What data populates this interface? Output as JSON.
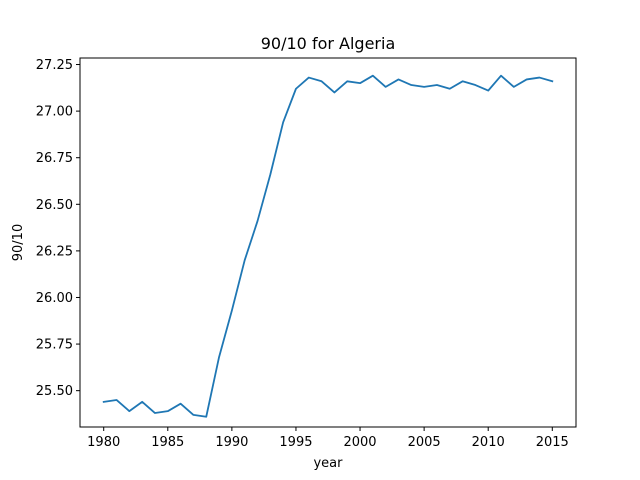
{
  "chart_data": {
    "type": "line",
    "title": "90/10 for Algeria",
    "xlabel": "year",
    "ylabel": "90/10",
    "xlim": [
      1978.15,
      2016.85
    ],
    "ylim": [
      25.305,
      27.285
    ],
    "xticks": [
      1980,
      1985,
      1990,
      1995,
      2000,
      2005,
      2010,
      2015
    ],
    "xtick_labels": [
      "1980",
      "1985",
      "1990",
      "1995",
      "2000",
      "2005",
      "2010",
      "2015"
    ],
    "yticks": [
      25.5,
      25.75,
      26.0,
      26.25,
      26.5,
      26.75,
      27.0,
      27.25
    ],
    "ytick_labels": [
      "25.50",
      "25.75",
      "26.00",
      "26.25",
      "26.50",
      "26.75",
      "27.00",
      "27.25"
    ],
    "grid": false,
    "legend": "none",
    "series": [
      {
        "color": "#1f77b4",
        "x": [
          1980,
          1981,
          1982,
          1983,
          1984,
          1985,
          1986,
          1987,
          1988,
          1989,
          1990,
          1991,
          1992,
          1993,
          1994,
          1995,
          1996,
          1997,
          1998,
          1999,
          2000,
          2001,
          2002,
          2003,
          2004,
          2005,
          2006,
          2007,
          2008,
          2009,
          2010,
          2011,
          2012,
          2013,
          2014,
          2015
        ],
        "y": [
          25.44,
          25.45,
          25.39,
          25.44,
          25.38,
          25.39,
          25.43,
          25.37,
          25.36,
          25.68,
          25.93,
          26.2,
          26.41,
          26.66,
          26.94,
          27.12,
          27.18,
          27.16,
          27.1,
          27.16,
          27.15,
          27.19,
          27.13,
          27.17,
          27.14,
          27.13,
          27.14,
          27.12,
          27.16,
          27.14,
          27.11,
          27.19,
          27.13,
          27.17,
          27.18,
          27.16
        ]
      }
    ]
  }
}
